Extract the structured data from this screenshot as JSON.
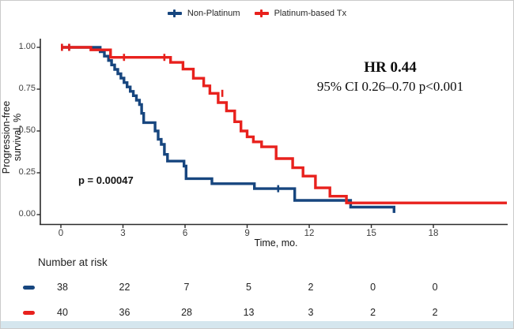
{
  "page": {
    "bottom_bar_color": "#d5e6ee",
    "frame_border_color": "#cbcbcb",
    "background": "#ffffff"
  },
  "legend": {
    "items": [
      {
        "label": "Non-Platinum",
        "color": "#17467f"
      },
      {
        "label": "Platinum-based Tx",
        "color": "#e8211d"
      }
    ]
  },
  "axes": {
    "y_title": "Progression-free survival, %",
    "x_title": "Time, mo.",
    "y_ticks": [
      {
        "label": "1.00",
        "v": 1.0
      },
      {
        "label": "0.75",
        "v": 0.75
      },
      {
        "label": "0.50",
        "v": 0.5
      },
      {
        "label": "0.25",
        "v": 0.25
      },
      {
        "label": "0.00",
        "v": 0.0
      }
    ],
    "x_ticks": [
      {
        "label": "0",
        "t": 0
      },
      {
        "label": "3",
        "t": 3
      },
      {
        "label": "6",
        "t": 6
      },
      {
        "label": "9",
        "t": 9
      },
      {
        "label": "12",
        "t": 12
      },
      {
        "label": "15",
        "t": 15
      },
      {
        "label": "18",
        "t": 18
      }
    ]
  },
  "annotations": {
    "hr_line1": "HR 0.44",
    "hr_line2": "95% CI 0.26–0.70 p<0.001",
    "pvalue": "p = 0.00047"
  },
  "risk_table": {
    "header": "Number at risk",
    "times": [
      0,
      3,
      6,
      9,
      12,
      15,
      18
    ],
    "rows": [
      {
        "name": "Non-Platinum",
        "color": "#17467f",
        "counts": [
          "38",
          "22",
          "7",
          "5",
          "2",
          "0",
          "0"
        ]
      },
      {
        "name": "Platinum-based Tx",
        "color": "#e8211d",
        "counts": [
          "40",
          "36",
          "28",
          "13",
          "3",
          "2",
          "2"
        ]
      }
    ]
  },
  "chart_data": {
    "type": "line",
    "subtype": "kaplan-meier-step",
    "xlabel": "Time, mo.",
    "ylabel": "Progression-free survival, %",
    "xlim": [
      -1,
      21.6
    ],
    "ylim": [
      0,
      1.05
    ],
    "x_tick_values": [
      0,
      3,
      6,
      9,
      12,
      15,
      18
    ],
    "y_tick_values": [
      0,
      0.25,
      0.5,
      0.75,
      1.0
    ],
    "grid": false,
    "legend_position": "top-center",
    "series": [
      {
        "name": "Non-Platinum",
        "color": "#17467f",
        "end_t": 16.1,
        "points": [
          [
            0,
            1.0
          ],
          [
            1.9,
            0.974
          ],
          [
            2.1,
            0.947
          ],
          [
            2.3,
            0.921
          ],
          [
            2.45,
            0.895
          ],
          [
            2.6,
            0.868
          ],
          [
            2.75,
            0.842
          ],
          [
            2.9,
            0.816
          ],
          [
            3.05,
            0.789
          ],
          [
            3.2,
            0.763
          ],
          [
            3.35,
            0.737
          ],
          [
            3.5,
            0.711
          ],
          [
            3.65,
            0.684
          ],
          [
            3.8,
            0.658
          ],
          [
            3.9,
            0.605
          ],
          [
            4.0,
            0.55
          ],
          [
            4.55,
            0.5
          ],
          [
            4.7,
            0.45
          ],
          [
            4.85,
            0.42
          ],
          [
            5.0,
            0.36
          ],
          [
            5.15,
            0.32
          ],
          [
            5.95,
            0.29
          ],
          [
            6.05,
            0.215
          ],
          [
            7.3,
            0.185
          ],
          [
            9.35,
            0.155
          ],
          [
            11.3,
            0.085
          ],
          [
            14.0,
            0.045
          ],
          [
            16.1,
            0.01
          ]
        ],
        "censors": [
          [
            0.05,
            1.0
          ],
          [
            0.4,
            1.0
          ],
          [
            10.5,
            0.155
          ]
        ]
      },
      {
        "name": "Platinum-based Tx",
        "color": "#e8211d",
        "end_t": 21.55,
        "points": [
          [
            0,
            1.0
          ],
          [
            1.45,
            0.985
          ],
          [
            2.4,
            0.94
          ],
          [
            5.3,
            0.91
          ],
          [
            5.9,
            0.87
          ],
          [
            6.4,
            0.815
          ],
          [
            6.9,
            0.77
          ],
          [
            7.2,
            0.725
          ],
          [
            7.6,
            0.67
          ],
          [
            8.0,
            0.62
          ],
          [
            8.4,
            0.555
          ],
          [
            8.7,
            0.5
          ],
          [
            9.0,
            0.465
          ],
          [
            9.3,
            0.435
          ],
          [
            9.7,
            0.405
          ],
          [
            10.4,
            0.335
          ],
          [
            11.2,
            0.28
          ],
          [
            11.7,
            0.23
          ],
          [
            12.3,
            0.16
          ],
          [
            13.0,
            0.11
          ],
          [
            13.8,
            0.07
          ]
        ],
        "censors": [
          [
            0.05,
            1.0
          ],
          [
            0.4,
            1.0
          ],
          [
            3.05,
            0.94
          ],
          [
            5.0,
            0.94
          ],
          [
            7.8,
            0.725
          ]
        ]
      }
    ]
  }
}
